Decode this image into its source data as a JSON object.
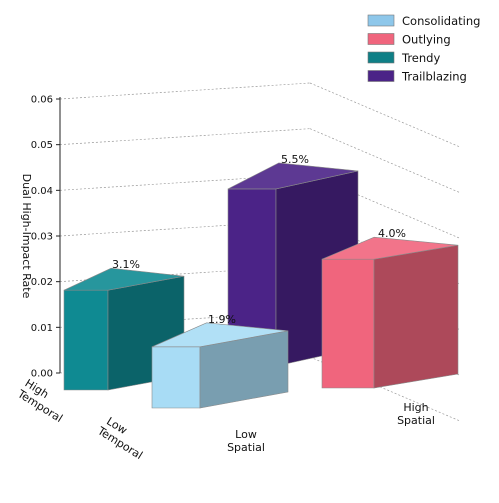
{
  "chart_data": {
    "type": "bar",
    "projection": "3d",
    "title": "",
    "xlabel": "",
    "ylabel": "Dual High-Impact Rate",
    "zlim": [
      0,
      0.06
    ],
    "zticks": [
      "0.00",
      "0.01",
      "0.02",
      "0.03",
      "0.04",
      "0.05",
      "0.06"
    ],
    "temporal_labels": [
      [
        "High",
        "Temporal"
      ],
      [
        "Low",
        "Temporal"
      ]
    ],
    "spatial_labels": [
      [
        "Low",
        "Spatial"
      ],
      [
        "High",
        "Spatial"
      ]
    ],
    "grid": true,
    "legend_position": "top-right",
    "series": [
      {
        "name": "Consolidating",
        "temporal": "Low",
        "spatial": "Low",
        "value": 0.019,
        "label": "1.9%",
        "color": "#a8dcf5"
      },
      {
        "name": "Outlying",
        "temporal": "Low",
        "spatial": "High",
        "value": 0.04,
        "label": "4.0%",
        "color": "#f0657d"
      },
      {
        "name": "Trendy",
        "temporal": "High",
        "spatial": "Low",
        "value": 0.031,
        "label": "3.1%",
        "color": "#0f8a92"
      },
      {
        "name": "Trailblazing",
        "temporal": "High",
        "spatial": "High",
        "value": 0.055,
        "label": "5.5%",
        "color": "#4b2387"
      }
    ],
    "legend": [
      {
        "label": "Consolidating",
        "color": "#8ec7ea"
      },
      {
        "label": "Outlying",
        "color": "#f0657d"
      },
      {
        "label": "Trendy",
        "color": "#0f7f86"
      },
      {
        "label": "Trailblazing",
        "color": "#4b2387"
      }
    ]
  }
}
